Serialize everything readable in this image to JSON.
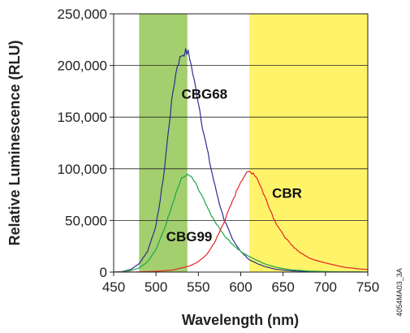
{
  "chart_data": {
    "type": "line",
    "xlabel": "Wavelength (nm)",
    "ylabel": "Relative Luminescence (RLU)",
    "xlim": [
      450,
      750
    ],
    "ylim": [
      0,
      250000
    ],
    "x_ticks": [
      "450",
      "500",
      "550",
      "600",
      "650",
      "700",
      "750"
    ],
    "y_ticks": [
      "0",
      "50,000",
      "100,000",
      "150,000",
      "200,000",
      "250,000"
    ],
    "grid": "horizontal",
    "bands": [
      {
        "from": 480,
        "to": 537,
        "color": "#a3cf6e"
      },
      {
        "from": 610,
        "to": 750,
        "color": "#fff36a"
      }
    ],
    "series": [
      {
        "name": "CBG68",
        "color": "#2b2f8f",
        "label_at": [
          530,
          168000
        ],
        "x": [
          450,
          460,
          470,
          480,
          490,
          500,
          505,
          510,
          515,
          520,
          525,
          530,
          535,
          538,
          540,
          545,
          550,
          555,
          560,
          565,
          570,
          575,
          580,
          590,
          600,
          610,
          620,
          630,
          640,
          650,
          660,
          680,
          700,
          720,
          750
        ],
        "y": [
          0,
          500,
          2500,
          8000,
          20000,
          45000,
          70000,
          100000,
          140000,
          175000,
          200000,
          210000,
          213000,
          212000,
          207000,
          185000,
          165000,
          140000,
          120000,
          100000,
          82000,
          66000,
          52000,
          32000,
          20000,
          12000,
          8000,
          5000,
          3000,
          2000,
          1200,
          600,
          300,
          150,
          0
        ]
      },
      {
        "name": "CBG99",
        "color": "#1aa64a",
        "label_at": [
          512,
          30000
        ],
        "x": [
          450,
          460,
          470,
          480,
          490,
          500,
          510,
          520,
          525,
          530,
          535,
          540,
          545,
          550,
          555,
          560,
          570,
          580,
          590,
          600,
          610,
          620,
          630,
          640,
          650,
          660,
          680,
          700,
          720,
          750
        ],
        "y": [
          0,
          400,
          1500,
          4000,
          10000,
          22000,
          42000,
          68000,
          80000,
          90000,
          94000,
          93000,
          88000,
          80000,
          72000,
          63000,
          48000,
          36000,
          27000,
          20000,
          15000,
          11000,
          7500,
          5000,
          3500,
          2200,
          1000,
          500,
          200,
          0
        ]
      },
      {
        "name": "CBR",
        "color": "#e32626",
        "label_at": [
          637,
          72000
        ],
        "x": [
          450,
          480,
          500,
          520,
          540,
          550,
          560,
          570,
          580,
          590,
          595,
          600,
          605,
          610,
          615,
          620,
          625,
          630,
          640,
          650,
          660,
          670,
          680,
          690,
          700,
          720,
          740,
          750
        ],
        "y": [
          0,
          200,
          700,
          2000,
          6000,
          10000,
          17000,
          30000,
          48000,
          68000,
          78000,
          88000,
          94000,
          97000,
          96000,
          90000,
          80000,
          70000,
          50000,
          36000,
          26000,
          19000,
          14000,
          11000,
          9000,
          5000,
          3000,
          2500
        ]
      }
    ]
  },
  "figure_code": "4054MA03_3A"
}
